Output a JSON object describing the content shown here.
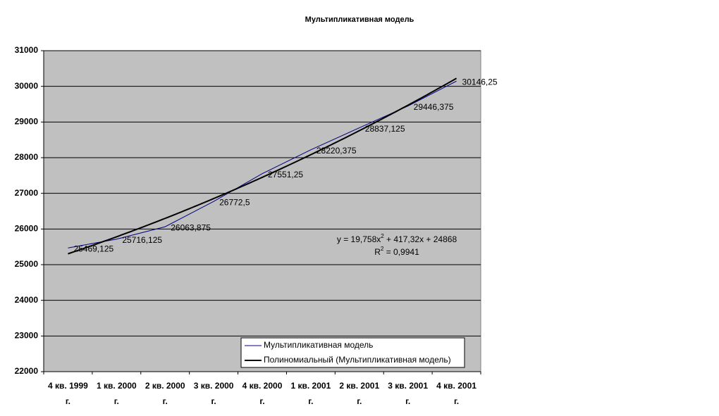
{
  "chart_data": {
    "type": "line",
    "title": "Мультипликативная модель",
    "categories": [
      "4 кв. 1999 г.",
      "1 кв. 2000 г.",
      "2 кв. 2000 г.",
      "3 кв. 2000 г.",
      "4 кв. 2000 г.",
      "1 кв. 2001 г.",
      "2 кв. 2001 г.",
      "3 кв. 2001 г.",
      "4 кв. 2001 г."
    ],
    "series": [
      {
        "name": "Мультипликативная модель",
        "color": "#000080",
        "values": [
          25469.125,
          25716.125,
          26063.875,
          26772.5,
          27551.25,
          28220.375,
          28837.125,
          29446.375,
          30146.25
        ],
        "value_labels": [
          "25469,125",
          "25716,125",
          "26063,875",
          "26772,5",
          "27551,25",
          "28220,375",
          "28837,125",
          "29446,375",
          "30146,25"
        ]
      }
    ],
    "trendline": {
      "name": "Полиномиальный (Мультипликативная модель)",
      "color": "#000000",
      "coefficients": [
        19.758,
        417.32,
        24868
      ],
      "equation": [
        "y = 19,758x",
        "2",
        " + 417,32x + 24868"
      ],
      "r_squared": [
        "R",
        "2",
        " = 0,9941"
      ]
    },
    "ylim": [
      22000,
      31000
    ],
    "yticks": [
      22000,
      23000,
      24000,
      25000,
      26000,
      27000,
      28000,
      29000,
      30000,
      31000
    ],
    "grid": true,
    "legend": "bottom-right"
  }
}
